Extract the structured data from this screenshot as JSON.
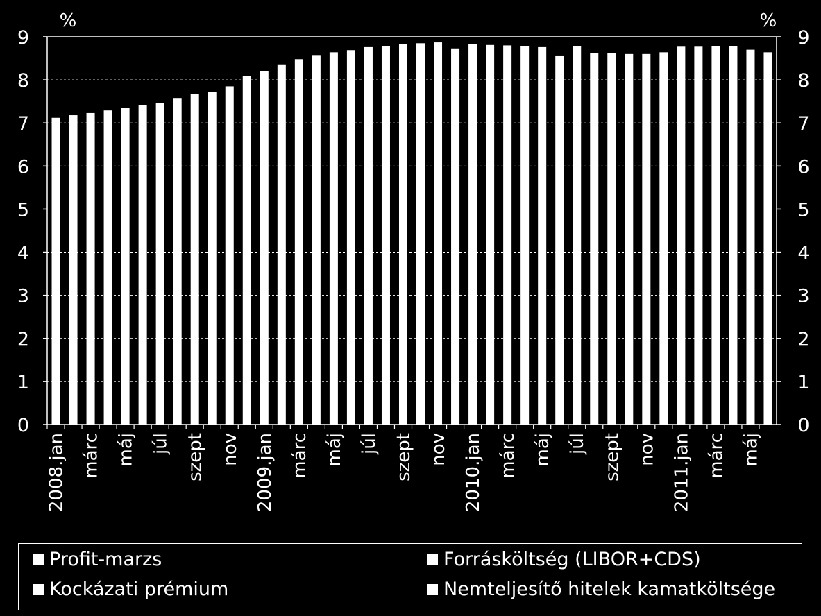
{
  "chart_data": {
    "type": "bar",
    "title": "",
    "ylabel_left": "%",
    "ylabel_right": "%",
    "ylim": [
      0,
      9
    ],
    "yticks": [
      0,
      1,
      2,
      3,
      4,
      5,
      6,
      7,
      8,
      9
    ],
    "grid": "horizontal dashed",
    "categories": [
      "2008.jan",
      "feb",
      "márc",
      "ápr",
      "máj",
      "jún",
      "júl",
      "aug",
      "szept",
      "okt",
      "nov",
      "dec",
      "2009.jan",
      "feb",
      "márc",
      "ápr",
      "máj",
      "jún",
      "júl",
      "aug",
      "szept",
      "okt",
      "nov",
      "dec",
      "2010.jan",
      "feb",
      "márc",
      "ápr",
      "máj",
      "jún",
      "júl",
      "aug",
      "szept",
      "okt",
      "nov",
      "dec",
      "2011.jan",
      "feb",
      "márc",
      "ápr",
      "máj",
      "jún"
    ],
    "xtick_labels": [
      "2008.jan",
      "",
      "márc",
      "",
      "máj",
      "",
      "júl",
      "",
      "szept",
      "",
      "nov",
      "",
      "2009.jan",
      "",
      "márc",
      "",
      "máj",
      "",
      "júl",
      "",
      "szept",
      "",
      "nov",
      "",
      "2010.jan",
      "",
      "márc",
      "",
      "máj",
      "",
      "júl",
      "",
      "szept",
      "",
      "nov",
      "",
      "2011.jan",
      "",
      "márc",
      "",
      "máj",
      ""
    ],
    "values": [
      7.12,
      7.18,
      7.23,
      7.29,
      7.35,
      7.41,
      7.47,
      7.58,
      7.68,
      7.72,
      7.85,
      8.09,
      8.2,
      8.36,
      8.48,
      8.56,
      8.64,
      8.69,
      8.76,
      8.79,
      8.83,
      8.85,
      8.87,
      8.73,
      8.83,
      8.81,
      8.8,
      8.78,
      8.76,
      8.55,
      8.78,
      8.62,
      8.62,
      8.6,
      8.6,
      8.64,
      8.77,
      8.77,
      8.79,
      8.79,
      8.7,
      8.64
    ]
  },
  "legend": {
    "items": [
      {
        "label": "Profit-marzs"
      },
      {
        "label": "Forrásköltség (LIBOR+CDS)"
      },
      {
        "label": "Kockázati prémium"
      },
      {
        "label": "Nemteljesítő hitelek kamatköltsége"
      }
    ]
  },
  "colors": {
    "background": "#000000",
    "bars": "#ffffff",
    "text": "#ffffff"
  }
}
